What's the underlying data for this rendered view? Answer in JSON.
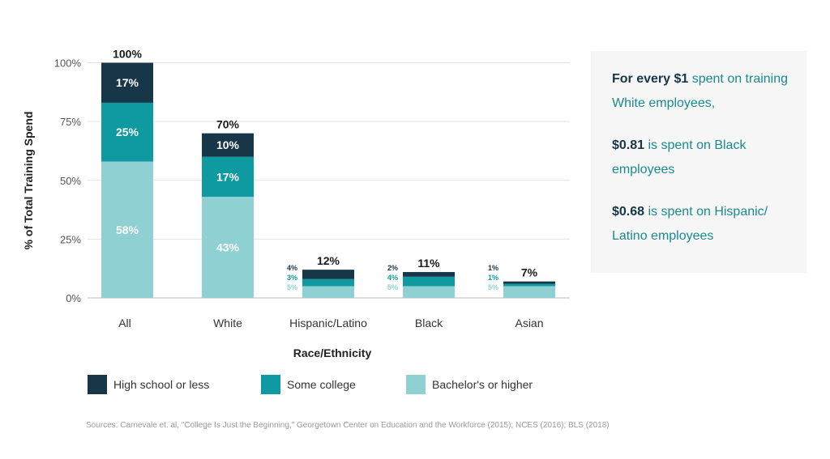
{
  "chart_data": {
    "type": "bar",
    "stacked": true,
    "categories": [
      "All",
      "White",
      "Hispanic/Latino",
      "Black",
      "Asian"
    ],
    "series": [
      {
        "name": "Bachelor's or higher",
        "color": "#8fd0d2",
        "values": [
          58,
          43,
          5,
          5,
          5
        ],
        "labels": [
          "58%",
          "43%",
          "5%",
          "5%",
          "5%"
        ]
      },
      {
        "name": "Some college",
        "color": "#0f9aa1",
        "values": [
          25,
          17,
          3,
          4,
          1
        ],
        "labels": [
          "25%",
          "17%",
          "3%",
          "4%",
          "1%"
        ]
      },
      {
        "name": "High school or less",
        "color": "#173647",
        "values": [
          17,
          10,
          4,
          2,
          1
        ],
        "labels": [
          "17%",
          "10%",
          "4%",
          "2%",
          "1%"
        ]
      }
    ],
    "bar_heights": [
      100,
      70,
      12,
      11,
      7
    ],
    "totals": [
      "100%",
      "70%",
      "12%",
      "11%",
      "7%"
    ],
    "ylabel": "% of Total Training Spend",
    "xlabel": "Race/Ethnicity",
    "yticks": [
      "0%",
      "25%",
      "50%",
      "75%",
      "100%"
    ],
    "ylim": [
      0,
      105
    ],
    "grid": true,
    "legend_position": "bottom"
  },
  "legend": [
    {
      "label": "High school or less",
      "color": "#173647"
    },
    {
      "label": "Some college",
      "color": "#0f9aa1"
    },
    {
      "label": "Bachelor's or higher",
      "color": "#8fd0d2"
    }
  ],
  "callout": {
    "p1_bold": "For every $1",
    "p1_rest": " spent on training White employees,",
    "p2_bold": "$0.81",
    "p2_rest": " is spent on Black employees",
    "p3_bold": "$0.68",
    "p3_rest": " is spent on Hispanic/ Latino employees"
  },
  "source": "Sources: Carnevale et. al, \"College Is Just the Beginning,\" Georgetown Center on Education and the Workforce (2015); NCES (2016); BLS (2018)"
}
